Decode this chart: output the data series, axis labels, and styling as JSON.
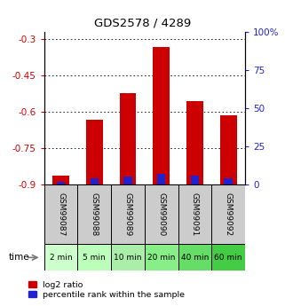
{
  "title": "GDS2578 / 4289",
  "samples": [
    "GSM99087",
    "GSM99088",
    "GSM99089",
    "GSM99090",
    "GSM99091",
    "GSM99092"
  ],
  "time_labels": [
    "2 min",
    "5 min",
    "10 min",
    "20 min",
    "40 min",
    "60 min"
  ],
  "time_colors": [
    "#ccffcc",
    "#bbeecc",
    "#aaddbb",
    "#88dd88",
    "#66cc66",
    "#44cc44"
  ],
  "log2_values": [
    -0.865,
    -0.635,
    -0.525,
    -0.335,
    -0.555,
    -0.615
  ],
  "percentile_values": [
    2,
    4,
    5,
    7,
    6,
    4
  ],
  "bar_bottom": -0.9,
  "y_min": -0.9,
  "y_max": -0.27,
  "y_ticks": [
    -0.9,
    -0.75,
    -0.6,
    -0.45,
    -0.3
  ],
  "y_tick_labels": [
    "-0.9",
    "-0.75",
    "-0.6",
    "-0.45",
    "-0.3"
  ],
  "right_y_ticks": [
    0,
    25,
    50,
    75,
    100
  ],
  "right_y_labels": [
    "0",
    "25",
    "50",
    "75",
    "100%"
  ],
  "red_color": "#cc0000",
  "blue_color": "#2222cc",
  "bar_width": 0.5,
  "gray_bg": "#cccccc",
  "green_bg_colors": [
    "#ccffcc",
    "#bbeecc",
    "#aaddbb",
    "#88dd88",
    "#66cc66",
    "#44cc44"
  ],
  "time_arrow_color": "#888888",
  "grid_color": "#000000",
  "left_tick_color": "#cc0000",
  "right_tick_color": "#2222cc",
  "legend_red_label": "log2 ratio",
  "legend_blue_label": "percentile rank within the sample"
}
